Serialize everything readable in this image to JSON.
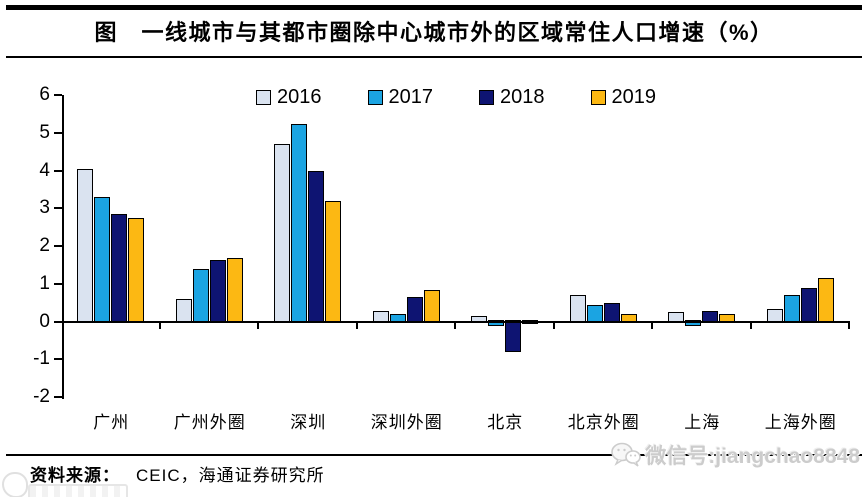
{
  "header": {
    "title": "图　一线城市与其都市圈除中心城市外的区域常住人口增速（%）"
  },
  "chart_data": {
    "type": "bar",
    "title": "一线城市与其都市圈除中心城市外的区域常住人口增速（%）",
    "categories": [
      "广州",
      "广州外圈",
      "深圳",
      "深圳外圈",
      "北京",
      "北京外圈",
      "上海",
      "上海外圈"
    ],
    "series": [
      {
        "name": "2016",
        "color": "#dae3f0",
        "values": [
          4.0,
          0.55,
          4.65,
          0.25,
          0.1,
          0.65,
          0.2,
          0.3
        ]
      },
      {
        "name": "2017",
        "color": "#1ba4e2",
        "values": [
          3.25,
          1.35,
          5.2,
          0.15,
          -0.1,
          0.4,
          -0.1,
          0.65
        ]
      },
      {
        "name": "2018",
        "color": "#0e1472",
        "values": [
          2.8,
          1.6,
          3.95,
          0.6,
          -0.8,
          0.45,
          0.25,
          0.85
        ]
      },
      {
        "name": "2019",
        "color": "#fcb813",
        "values": [
          2.7,
          1.65,
          3.15,
          0.8,
          -0.05,
          0.15,
          0.15,
          1.1
        ]
      }
    ],
    "xlabel": "",
    "ylabel": "",
    "ylim": [
      -2,
      6
    ],
    "yticks": [
      6,
      5,
      4,
      3,
      2,
      1,
      0,
      -1,
      -2
    ],
    "grid": false,
    "legend_position": "top"
  },
  "footer": {
    "source_label": "资料来源：",
    "source_text": "CEIC，海通证券研究所"
  },
  "watermark": {
    "wechat_id": "微信号:jiangchao8848"
  }
}
